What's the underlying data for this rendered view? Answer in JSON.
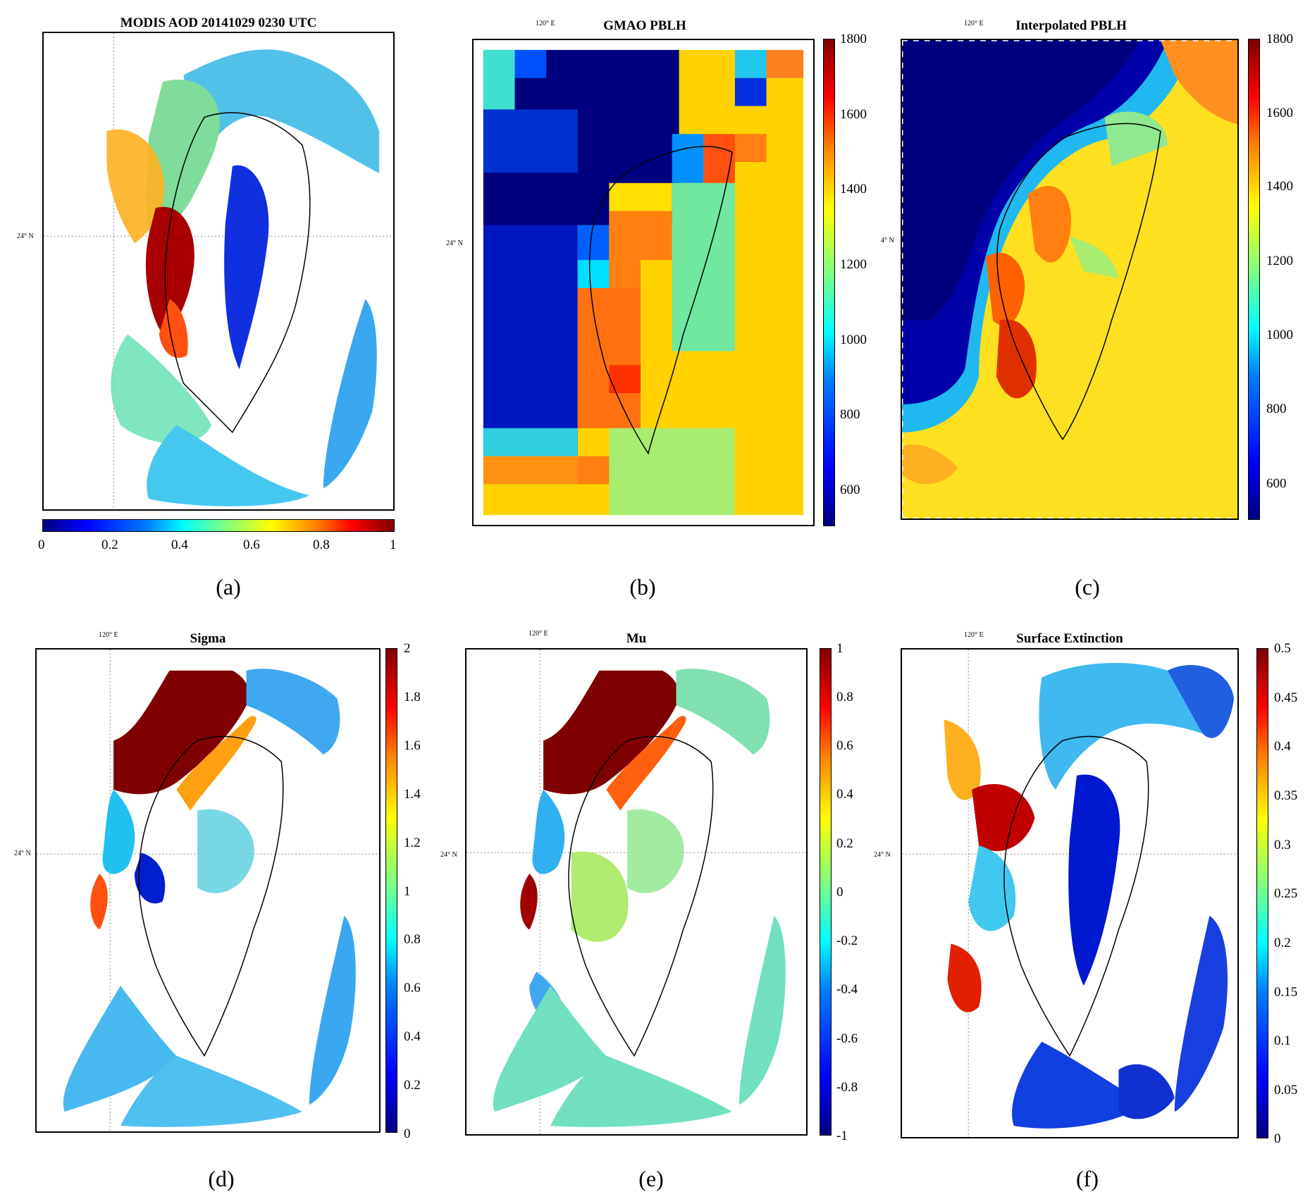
{
  "figure": {
    "panels": [
      {
        "id": "a",
        "caption": "(a)",
        "title": "MODIS AOD 20141029 0230 UTC",
        "lon_label": "",
        "lat_label": "24° N",
        "colorbar": "horizontal",
        "ticks": [
          "0",
          "0.2",
          "0.4",
          "0.6",
          "0.8",
          "1"
        ]
      },
      {
        "id": "b",
        "caption": "(b)",
        "title": "GMAO PBLH",
        "lon_label": "120° E",
        "lat_label": "24° N",
        "colorbar": "vertical",
        "ticks": [
          "1800",
          "1600",
          "1400",
          "1200",
          "1000",
          "800",
          "600"
        ]
      },
      {
        "id": "c",
        "caption": "(c)",
        "title": "Interpolated PBLH",
        "lon_label": "120° E",
        "lat_label": "4° N",
        "colorbar": "vertical",
        "ticks": [
          "1800",
          "1600",
          "1400",
          "1200",
          "1000",
          "800",
          "600"
        ]
      },
      {
        "id": "d",
        "caption": "(d)",
        "title": "Sigma",
        "lon_label": "120° E",
        "lat_label": "24° N",
        "colorbar": "vertical",
        "ticks": [
          "2",
          "1.8",
          "1.6",
          "1.4",
          "1.2",
          "1",
          "0.8",
          "0.6",
          "0.4",
          "0.2",
          "0"
        ]
      },
      {
        "id": "e",
        "caption": "(e)",
        "title": "Mu",
        "lon_label": "120° E",
        "lat_label": "24° N",
        "colorbar": "vertical",
        "ticks": [
          "1",
          "0.8",
          "0.6",
          "0.4",
          "0.2",
          "0",
          "-0.2",
          "-0.4",
          "-0.6",
          "-0.8",
          "-1"
        ]
      },
      {
        "id": "f",
        "caption": "(f)",
        "title": "Surface Extinction",
        "lon_label": "120° E",
        "lat_label": "24° N",
        "colorbar": "vertical",
        "ticks": [
          "0.5",
          "0.45",
          "0.4",
          "0.35",
          "0.3",
          "0.25",
          "0.2",
          "0.15",
          "0.1",
          "0.05",
          "0"
        ]
      }
    ]
  }
}
